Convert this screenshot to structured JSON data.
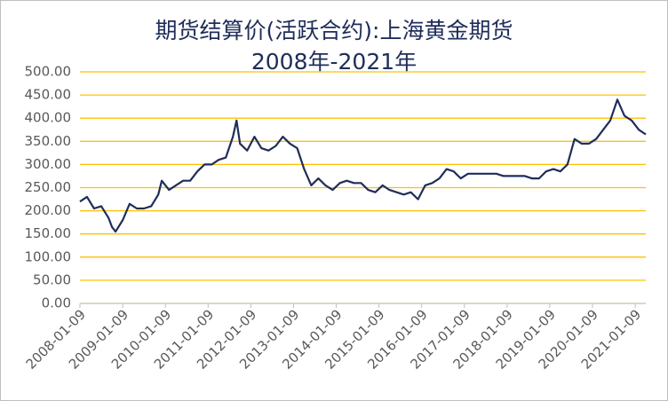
{
  "chart_data": {
    "type": "line",
    "title": "期货结算价(活跃合约):上海黄金期货",
    "subtitle": "2008年-2021年",
    "x": [
      "2008-01-09",
      "2008-03-09",
      "2008-05-09",
      "2008-07-09",
      "2008-09-09",
      "2008-10-09",
      "2008-11-09",
      "2009-01-09",
      "2009-03-09",
      "2009-05-09",
      "2009-07-09",
      "2009-09-09",
      "2009-11-09",
      "2009-12-09",
      "2010-02-09",
      "2010-04-09",
      "2010-06-09",
      "2010-08-09",
      "2010-10-09",
      "2010-12-09",
      "2011-02-09",
      "2011-04-09",
      "2011-06-09",
      "2011-08-09",
      "2011-09-09",
      "2011-10-09",
      "2011-12-09",
      "2012-02-09",
      "2012-04-09",
      "2012-06-09",
      "2012-08-09",
      "2012-10-09",
      "2012-12-09",
      "2013-02-09",
      "2013-04-09",
      "2013-06-09",
      "2013-08-09",
      "2013-10-09",
      "2013-12-09",
      "2014-02-09",
      "2014-04-09",
      "2014-06-09",
      "2014-08-09",
      "2014-10-09",
      "2014-12-09",
      "2015-02-09",
      "2015-04-09",
      "2015-06-09",
      "2015-08-09",
      "2015-10-09",
      "2015-12-09",
      "2016-02-09",
      "2016-04-09",
      "2016-06-09",
      "2016-08-09",
      "2016-10-09",
      "2016-12-09",
      "2017-02-09",
      "2017-04-09",
      "2017-06-09",
      "2017-08-09",
      "2017-10-09",
      "2017-12-09",
      "2018-02-09",
      "2018-04-09",
      "2018-06-09",
      "2018-08-09",
      "2018-10-09",
      "2018-12-09",
      "2019-02-09",
      "2019-04-09",
      "2019-06-09",
      "2019-08-09",
      "2019-10-09",
      "2019-12-09",
      "2020-02-09",
      "2020-04-09",
      "2020-06-09",
      "2020-08-09",
      "2020-10-09",
      "2020-12-09",
      "2021-02-09",
      "2021-04-09"
    ],
    "series": [
      {
        "color": "#1f2d5a",
        "values": [
          220,
          230,
          205,
          210,
          185,
          165,
          155,
          180,
          215,
          205,
          205,
          210,
          235,
          265,
          245,
          255,
          265,
          265,
          285,
          300,
          300,
          310,
          315,
          360,
          395,
          345,
          330,
          360,
          335,
          330,
          340,
          360,
          345,
          335,
          290,
          255,
          270,
          255,
          245,
          260,
          265,
          260,
          260,
          245,
          240,
          255,
          245,
          240,
          235,
          240,
          225,
          255,
          260,
          270,
          290,
          285,
          270,
          280,
          280,
          280,
          280,
          280,
          275,
          275,
          275,
          275,
          270,
          270,
          285,
          290,
          285,
          300,
          355,
          345,
          345,
          355,
          375,
          395,
          440,
          405,
          395,
          375,
          365
        ]
      }
    ],
    "xlim": [
      "2008-01-09",
      "2021-04-09"
    ],
    "xticks": [
      "2008-01-09",
      "2009-01-09",
      "2010-01-09",
      "2011-01-09",
      "2012-01-09",
      "2013-01-09",
      "2014-01-09",
      "2015-01-09",
      "2016-01-09",
      "2017-01-09",
      "2018-01-09",
      "2019-01-09",
      "2020-01-09",
      "2021-01-09"
    ],
    "ylim": [
      0,
      500
    ],
    "yticks": [
      {
        "value": 0,
        "label": "0.00"
      },
      {
        "value": 50,
        "label": "50.00"
      },
      {
        "value": 100,
        "label": "100.00"
      },
      {
        "value": 150,
        "label": "150.00"
      },
      {
        "value": 200,
        "label": "200.00"
      },
      {
        "value": 250,
        "label": "250.00"
      },
      {
        "value": 300,
        "label": "300.00"
      },
      {
        "value": 350,
        "label": "350.00"
      },
      {
        "value": 400,
        "label": "400.00"
      },
      {
        "value": 450,
        "label": "450.00"
      },
      {
        "value": 500,
        "label": "500.00"
      }
    ],
    "grid": true,
    "grid_color": "#ffc000"
  }
}
